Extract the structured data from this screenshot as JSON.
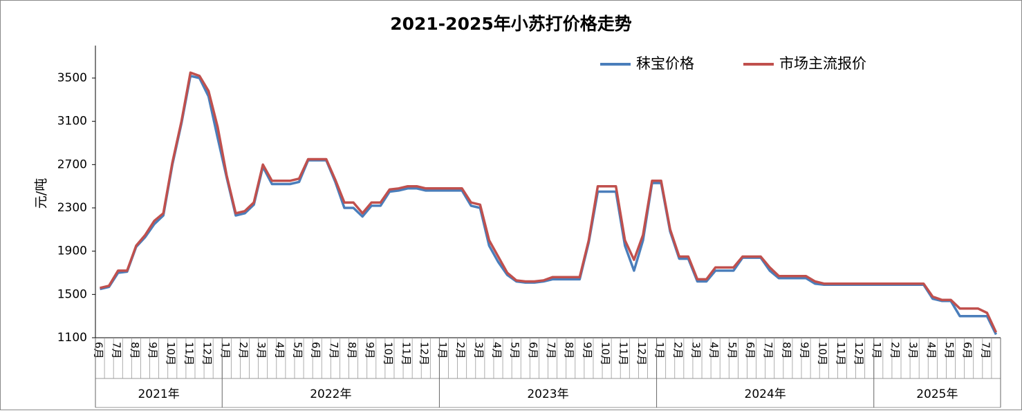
{
  "chart_data": {
    "type": "line",
    "title": "2021-2025年小苏打价格走势",
    "y_label": "元/吨",
    "categories": [
      "6月",
      null,
      "7月",
      null,
      "8月",
      null,
      "9月",
      null,
      "10月",
      null,
      "11月",
      null,
      "12月",
      null,
      "1月",
      null,
      "2月",
      null,
      "3月",
      null,
      "4月",
      null,
      "5月",
      null,
      "6月",
      null,
      "7月",
      null,
      "8月",
      null,
      "9月",
      null,
      "10月",
      null,
      "11月",
      null,
      "12月",
      null,
      "1月",
      null,
      "2月",
      null,
      "3月",
      null,
      "4月",
      null,
      "5月",
      null,
      "6月",
      null,
      "7月",
      null,
      "8月",
      null,
      "9月",
      null,
      "10月",
      null,
      "11月",
      null,
      "12月",
      null,
      "1月",
      null,
      "2月",
      null,
      "3月",
      null,
      "4月",
      null,
      "5月",
      null,
      "6月",
      null,
      "7月",
      null,
      "8月",
      null,
      "9月",
      null,
      "10月",
      null,
      "11月",
      null,
      "12月",
      null,
      "1月",
      null,
      "2月",
      null,
      "3月",
      null,
      "4月",
      null,
      "5月",
      null,
      "6月",
      null,
      "7月",
      null
    ],
    "years": [
      "2021年",
      "2022年",
      "2023年",
      "2024年",
      "2025年"
    ],
    "series": [
      {
        "name": "秣宝价格",
        "color": "#4a7ebb",
        "values": [
          1550,
          1570,
          1700,
          1710,
          1940,
          2030,
          2150,
          2230,
          2700,
          3080,
          3520,
          3500,
          3330,
          2950,
          2580,
          2230,
          2250,
          2330,
          2680,
          2520,
          2520,
          2520,
          2540,
          2740,
          2740,
          2740,
          2540,
          2300,
          2300,
          2220,
          2320,
          2320,
          2450,
          2460,
          2480,
          2480,
          2460,
          2460,
          2460,
          2460,
          2460,
          2320,
          2300,
          1950,
          1800,
          1680,
          1620,
          1610,
          1610,
          1620,
          1640,
          1640,
          1640,
          1640,
          1980,
          2450,
          2450,
          2450,
          1950,
          1720,
          2000,
          2530,
          2530,
          2080,
          1830,
          1830,
          1620,
          1620,
          1720,
          1720,
          1720,
          1840,
          1840,
          1840,
          1720,
          1650,
          1650,
          1650,
          1650,
          1600,
          1590,
          1590,
          1590,
          1590,
          1590,
          1590,
          1590,
          1590,
          1590,
          1590,
          1590,
          1590,
          1460,
          1440,
          1440,
          1300,
          1300,
          1300,
          1300,
          1130
        ]
      },
      {
        "name": "市场主流报价",
        "color": "#c0504d",
        "values": [
          1560,
          1580,
          1720,
          1720,
          1950,
          2050,
          2180,
          2250,
          2720,
          3100,
          3550,
          3520,
          3380,
          3050,
          2600,
          2250,
          2270,
          2350,
          2700,
          2550,
          2550,
          2550,
          2570,
          2750,
          2750,
          2750,
          2560,
          2350,
          2350,
          2250,
          2350,
          2350,
          2470,
          2480,
          2500,
          2500,
          2480,
          2480,
          2480,
          2480,
          2480,
          2350,
          2330,
          2000,
          1850,
          1700,
          1630,
          1620,
          1620,
          1630,
          1660,
          1660,
          1660,
          1660,
          2000,
          2500,
          2500,
          2500,
          2000,
          1820,
          2050,
          2550,
          2550,
          2100,
          1850,
          1850,
          1640,
          1640,
          1750,
          1750,
          1750,
          1850,
          1850,
          1850,
          1750,
          1670,
          1670,
          1670,
          1670,
          1620,
          1600,
          1600,
          1600,
          1600,
          1600,
          1600,
          1600,
          1600,
          1600,
          1600,
          1600,
          1600,
          1480,
          1450,
          1450,
          1370,
          1370,
          1370,
          1330,
          1150
        ]
      }
    ],
    "ylim": [
      1100,
      3800
    ],
    "yticks": [
      1100,
      1500,
      1900,
      2300,
      2700,
      3100,
      3500
    ],
    "grid": false,
    "legend": "top-right"
  }
}
